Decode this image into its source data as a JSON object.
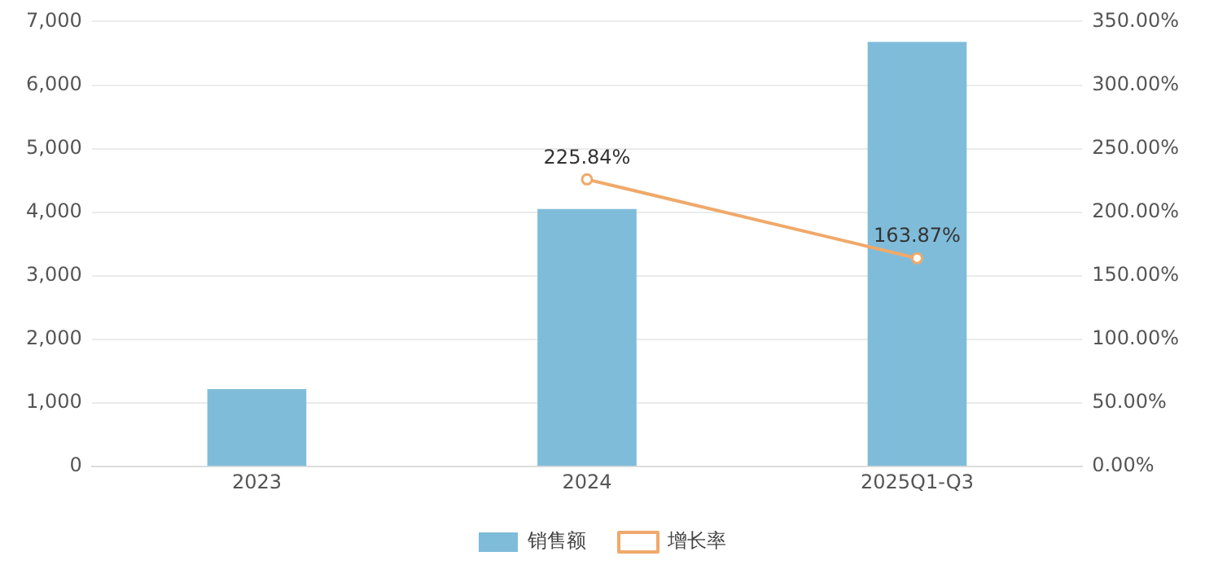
{
  "chart_data": {
    "type": "bar",
    "categories": [
      "2023",
      "2024",
      "2025Q1-Q3"
    ],
    "series": [
      {
        "name": "销售额",
        "color": "#7fbcda",
        "values": [
          1220,
          4050,
          6680
        ]
      },
      {
        "name": "增长率",
        "type": "line",
        "axis": "y2",
        "color": "#f0a96a",
        "values": [
          null,
          225.84,
          163.87
        ],
        "value_labels": [
          null,
          "225.84%",
          "163.87%"
        ]
      }
    ],
    "ylim": [
      0,
      7000
    ],
    "yticks": [
      {
        "value": 0,
        "label": "0"
      },
      {
        "value": 1000,
        "label": "1,000"
      },
      {
        "value": 2000,
        "label": "2,000"
      },
      {
        "value": 3000,
        "label": "3,000"
      },
      {
        "value": 4000,
        "label": "4,000"
      },
      {
        "value": 5000,
        "label": "5,000"
      },
      {
        "value": 6000,
        "label": "6,000"
      },
      {
        "value": 7000,
        "label": "7,000"
      }
    ],
    "y2lim": [
      0,
      350
    ],
    "y2ticks": [
      {
        "value": 0,
        "label": "0.00%"
      },
      {
        "value": 50,
        "label": "50.00%"
      },
      {
        "value": 100,
        "label": "100.00%"
      },
      {
        "value": 150,
        "label": "150.00%"
      },
      {
        "value": 200,
        "label": "200.00%"
      },
      {
        "value": 250,
        "label": "250.00%"
      },
      {
        "value": 300,
        "label": "300.00%"
      },
      {
        "value": 350,
        "label": "350.00%"
      }
    ],
    "grid": "y",
    "legend": "bottom",
    "marker": "circle"
  }
}
